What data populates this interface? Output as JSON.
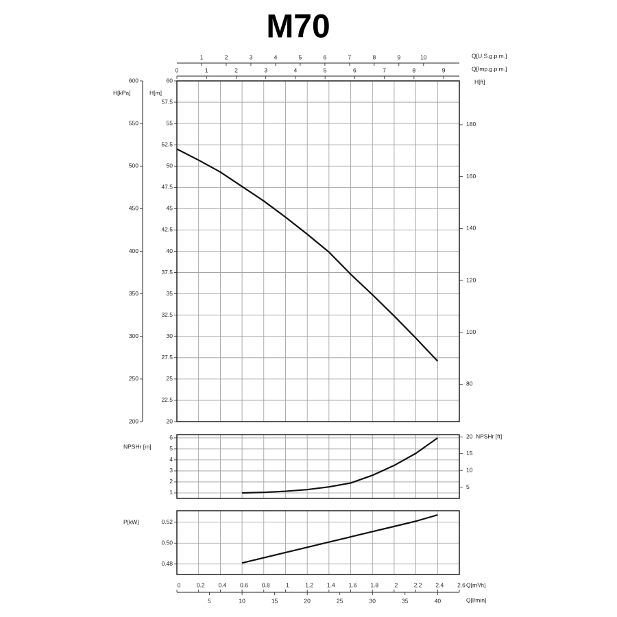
{
  "chart_data": [
    {
      "type": "line",
      "title": "M70",
      "x": [
        0,
        0.2,
        0.4,
        0.6,
        0.8,
        1,
        1.2,
        1.4,
        1.6,
        1.8,
        2,
        2.2,
        2.4
      ],
      "series": [
        {
          "color": "#111111",
          "values": [
            52,
            50.7,
            49.3,
            47.6,
            45.9,
            44,
            42,
            39.9,
            37.3,
            34.9,
            32.4,
            29.8,
            27.1
          ]
        }
      ],
      "ylabel": "H[m]",
      "ylim": [
        20,
        60
      ],
      "yticks": [
        20,
        22.5,
        25,
        27.5,
        30,
        32.5,
        35,
        37.5,
        40,
        42.5,
        45,
        47.5,
        50,
        52.5,
        55,
        57.5,
        60
      ],
      "y2label": "H[ft]",
      "y2lim": [
        65.6,
        196.9
      ],
      "y2ticks": [
        80,
        100,
        120,
        140,
        160,
        180
      ],
      "y3label": "H[kPa]",
      "y3lim": [
        200,
        600
      ],
      "y3ticks": [
        200,
        250,
        300,
        350,
        400,
        450,
        500,
        550,
        600
      ],
      "xlim": [
        0,
        2.6
      ],
      "xticks": [
        0,
        0.2,
        0.4,
        0.6,
        0.8,
        1,
        1.2,
        1.4,
        1.6,
        1.8,
        2,
        2.2,
        2.4,
        2.6
      ],
      "top_axes": [
        {
          "label": "Q[U.S.g.p.m.]",
          "lim": [
            0,
            11.45
          ],
          "ticks": [
            1,
            2,
            3,
            4,
            5,
            6,
            7,
            8,
            9,
            10
          ]
        },
        {
          "label": "Q[Imp.g.p.m.]",
          "lim": [
            0,
            9.53
          ],
          "ticks": [
            0,
            1,
            2,
            3,
            4,
            5,
            6,
            7,
            8,
            9
          ]
        }
      ],
      "grid": true
    },
    {
      "type": "line",
      "x": [
        0.6,
        0.8,
        1,
        1.2,
        1.4,
        1.6,
        1.8,
        2,
        2.2,
        2.4
      ],
      "values": [
        1,
        1.05,
        1.15,
        1.3,
        1.55,
        1.9,
        2.6,
        3.5,
        4.6,
        6
      ],
      "color": "#111111",
      "ylabel": "NPSHr [m]",
      "ylim": [
        0.5,
        6.3
      ],
      "yticks": [
        1,
        2,
        3,
        4,
        5,
        6
      ],
      "y2label": "NPSHr [ft]",
      "y2lim": [
        1.64,
        20.67
      ],
      "y2ticks": [
        5,
        10,
        15,
        20
      ],
      "xlim": [
        0,
        2.6
      ],
      "xticks": [
        0,
        0.2,
        0.4,
        0.6,
        0.8,
        1,
        1.2,
        1.4,
        1.6,
        1.8,
        2,
        2.2,
        2.4,
        2.6
      ],
      "grid": true
    },
    {
      "type": "line",
      "x": [
        0.6,
        0.8,
        1,
        1.2,
        1.4,
        1.6,
        1.8,
        2,
        2.2,
        2.4
      ],
      "values": [
        0.481,
        0.486,
        0.491,
        0.496,
        0.501,
        0.506,
        0.511,
        0.516,
        0.521,
        0.527
      ],
      "color": "#111111",
      "ylabel": "P[kW]",
      "ylim": [
        0.47,
        0.531
      ],
      "yticks": [
        0.48,
        {
          "value": 0.5,
          "label": "0.50"
        },
        0.52
      ],
      "xlabel": "Q[m³/h]",
      "xlim": [
        0,
        2.6
      ],
      "xticks": [
        0,
        0.2,
        0.4,
        0.6,
        0.8,
        1,
        1.2,
        1.4,
        1.6,
        1.8,
        2,
        2.2,
        2.4,
        2.6
      ],
      "bottom_axes": [
        {
          "label": "Q[l/min]",
          "lim": [
            0,
            43.33
          ],
          "ticks": [
            5,
            10,
            15,
            20,
            25,
            30,
            35,
            40
          ]
        }
      ],
      "grid": true
    }
  ]
}
